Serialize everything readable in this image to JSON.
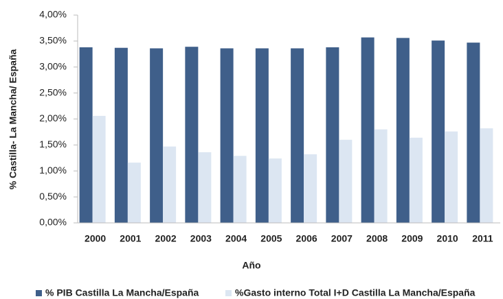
{
  "chart_data": {
    "type": "bar",
    "categories": [
      "2000",
      "2001",
      "2002",
      "2003",
      "2004",
      "2005",
      "2006",
      "2007",
      "2008",
      "2009",
      "2010",
      "2011"
    ],
    "series": [
      {
        "name": "% PIB Castilla La Mancha/España",
        "color": "#3f5f8a",
        "values": [
          3.38,
          3.37,
          3.36,
          3.39,
          3.36,
          3.36,
          3.36,
          3.38,
          3.57,
          3.56,
          3.51,
          3.47
        ]
      },
      {
        "name": "%Gasto interno Total I+D Castilla La Mancha/España",
        "color": "#dce6f2",
        "values": [
          2.06,
          1.16,
          1.47,
          1.36,
          1.29,
          1.24,
          1.32,
          1.6,
          1.8,
          1.64,
          1.76,
          1.82
        ]
      }
    ],
    "x_label": "Año",
    "y_label": "% Castilla- La Mancha/ España",
    "ylim": [
      0,
      4
    ],
    "yticks": [
      {
        "value": 0,
        "label": "0,00%"
      },
      {
        "value": 0.5,
        "label": "0,50%"
      },
      {
        "value": 1,
        "label": "1,00%"
      },
      {
        "value": 1.5,
        "label": "1,50%"
      },
      {
        "value": 2,
        "label": "2,00%"
      },
      {
        "value": 2.5,
        "label": "2,50%"
      },
      {
        "value": 3,
        "label": "3,00%"
      },
      {
        "value": 3.5,
        "label": "3,50%"
      },
      {
        "value": 4,
        "label": "4,00%"
      }
    ],
    "grid": false,
    "legend": "bottom"
  }
}
